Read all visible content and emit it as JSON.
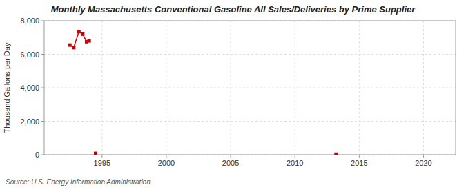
{
  "chart_data": {
    "type": "line",
    "title": "Monthly Massachusetts Conventional Gasoline All Sales/Deliveries by Prime Supplier",
    "y_label": "Thousand Gallons per Day",
    "annotation": "Source: U.S. Energy Information Administration",
    "xlim": [
      1990.5,
      2022.5
    ],
    "xticks": [
      1995,
      2000,
      2005,
      2010,
      2015,
      2020
    ],
    "ylim": [
      0,
      8000
    ],
    "yticks": [
      0,
      {
        "value": 2000,
        "label": "2,000"
      },
      {
        "value": 4000,
        "label": "4,000"
      },
      {
        "value": 6000,
        "label": "6,000"
      },
      {
        "value": 8000,
        "label": "8,000"
      }
    ],
    "grid": true,
    "series": [
      {
        "x": [
          1992.5,
          1992.8,
          1993.2,
          1993.5,
          1993.8,
          1994.0
        ],
        "values": [
          6550,
          6400,
          7350,
          7200,
          6750,
          6800
        ],
        "color": "#cc0000",
        "marker": "square",
        "line_style": "solid"
      },
      {
        "x": [
          1994.5,
          2013.2
        ],
        "values": [
          80,
          30
        ],
        "color": "#cc0000",
        "marker": "square",
        "line_style": "none"
      }
    ]
  }
}
